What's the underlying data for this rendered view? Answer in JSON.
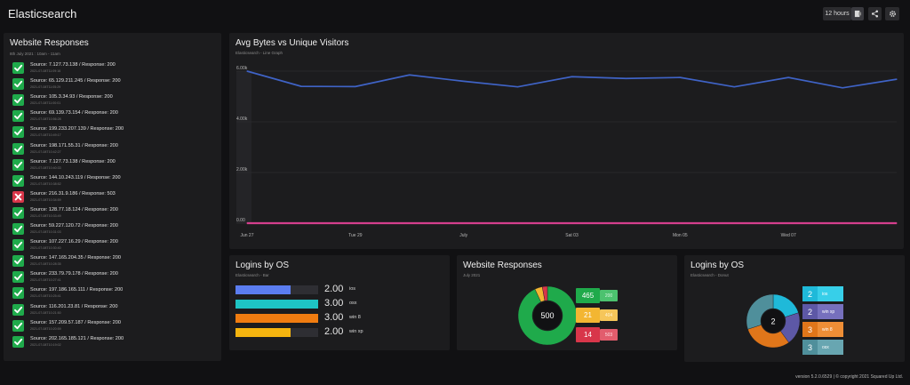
{
  "header": {
    "title": "Elasticsearch",
    "time_range": "12 hours"
  },
  "colors": {
    "background": "#111113",
    "panel": "#1c1c1e",
    "success": "#1faa4b",
    "error": "#d8364a",
    "line_blue": "#3f63c6",
    "line_pink": "#d43f8d"
  },
  "website_responses": {
    "title": "Website Responses",
    "subtitle": "8th July 2021 : 10am - 11am",
    "items": [
      {
        "text": "Source: 7.127.73.138 / Response: 200",
        "time": "2021-07-08T11:09:16",
        "status": "ok"
      },
      {
        "text": "Source: 65.129.211.245 / Response: 200",
        "time": "2021-07-08T11:05:29",
        "status": "ok"
      },
      {
        "text": "Source: 105.3.34.93 / Response: 200",
        "time": "2021-07-08T11:00:01",
        "status": "ok"
      },
      {
        "text": "Source: 69.139.73.154 / Response: 200",
        "time": "2021-07-08T10:56:28",
        "status": "ok"
      },
      {
        "text": "Source: 199.233.207.139 / Response: 200",
        "time": "2021-07-08T10:49:17",
        "status": "ok"
      },
      {
        "text": "Source: 198.171.55.31 / Response: 200",
        "time": "2021-07-08T10:42:27",
        "status": "ok"
      },
      {
        "text": "Source: 7.127.73.138 / Response: 200",
        "time": "2021-07-08T10:40:33",
        "status": "ok"
      },
      {
        "text": "Source: 144.10.243.119 / Response: 200",
        "time": "2021-07-08T10:38:52",
        "status": "ok"
      },
      {
        "text": "Source: 216.31.9.186 / Response: 503",
        "time": "2021-07-08T10:34:59",
        "status": "error"
      },
      {
        "text": "Source: 128.77.18.124 / Response: 200",
        "time": "2021-07-08T10:33:49",
        "status": "ok"
      },
      {
        "text": "Source: 59.227.120.72 / Response: 200",
        "time": "2021-07-08T10:31:03",
        "status": "ok"
      },
      {
        "text": "Source: 107.227.16.29 / Response: 200",
        "time": "2021-07-08T10:30:40",
        "status": "ok"
      },
      {
        "text": "Source: 147.165.204.35 / Response: 200",
        "time": "2021-07-08T10:28:35",
        "status": "ok"
      },
      {
        "text": "Source: 233.79.79.178 / Response: 200",
        "time": "2021-07-08T10:27:41",
        "status": "ok"
      },
      {
        "text": "Source: 197.186.165.111 / Response: 200",
        "time": "2021-07-08T10:25:41",
        "status": "ok"
      },
      {
        "text": "Source: 116.201.23.81 / Response: 200",
        "time": "2021-07-08T10:21:50",
        "status": "ok"
      },
      {
        "text": "Source: 157.209.57.187 / Response: 200",
        "time": "2021-07-08T10:20:59",
        "status": "ok"
      },
      {
        "text": "Source: 202.165.185.121 / Response: 200",
        "time": "2021-07-08T10:19:02",
        "status": "ok"
      }
    ]
  },
  "avg_bytes": {
    "title": "Avg Bytes vs Unique Visitors",
    "subtitle": "Elasticsearch - Line Graph"
  },
  "logins_bar": {
    "title": "Logins by OS",
    "subtitle": "Elasticsearch - Bar",
    "rows": [
      {
        "value": "2.00",
        "label": "ios",
        "fraction": 0.667,
        "color": "#5b7df0"
      },
      {
        "value": "3.00",
        "label": "osx",
        "fraction": 1.0,
        "color": "#1ec4c4"
      },
      {
        "value": "3.00",
        "label": "win 8",
        "fraction": 1.0,
        "color": "#f07c10"
      },
      {
        "value": "2.00",
        "label": "win xp",
        "fraction": 0.667,
        "color": "#f5b40f"
      }
    ]
  },
  "website_responses_donut": {
    "title": "Website Responses",
    "subtitle": "July 2021",
    "center": "500",
    "tiles": [
      {
        "count": "465",
        "code": "200",
        "color": "#1faa4b",
        "sub_color": "#4cc26f",
        "code_color": "#d8f5e0"
      },
      {
        "count": "21",
        "code": "404",
        "color": "#f3b632",
        "sub_color": "#f6c65a",
        "code_color": "#fff3d4"
      },
      {
        "count": "14",
        "code": "503",
        "color": "#d8364a",
        "sub_color": "#e25d6d",
        "code_color": "#ffe1e5"
      }
    ]
  },
  "logins_donut": {
    "title": "Logins by OS",
    "subtitle": "Elasticsearch - Donut",
    "center": "2",
    "legend": [
      {
        "count": "2",
        "label": "ios",
        "color": "#1fb9d9",
        "light": "#37cfe9"
      },
      {
        "count": "2",
        "label": "win xp",
        "color": "#5d58a6",
        "light": "#7670bd"
      },
      {
        "count": "3",
        "label": "win 8",
        "color": "#e0761a",
        "light": "#ee8e36"
      },
      {
        "count": "3",
        "label": "osx",
        "color": "#4f8f9b",
        "light": "#68a6b1"
      }
    ]
  },
  "chart_data": [
    {
      "type": "line",
      "title": "Avg Bytes vs Unique Visitors",
      "x": [
        "Jun 27",
        "Jun 28",
        "Jun 29",
        "Jun 30",
        "Jul 01",
        "Jul 02",
        "Jul 03",
        "Jul 04",
        "Jul 05",
        "Jul 06",
        "Jul 07",
        "Jul 08",
        "Jul 09"
      ],
      "x_tick_labels": [
        "Jun 27",
        "Tue 29",
        "July",
        "Sat 03",
        "Mon 05",
        "Wed 07"
      ],
      "y_tick_labels": [
        "6.00k",
        "4.00k",
        "2.00k",
        "0.00"
      ],
      "ylim": [
        0,
        6000
      ],
      "grid": true,
      "series": [
        {
          "values": [
            6000,
            5400,
            5390,
            5850,
            5600,
            5380,
            5780,
            5710,
            5750,
            5380,
            5750,
            5340,
            5680
          ]
        },
        {
          "values": [
            0,
            0,
            0,
            0,
            0,
            0,
            0,
            0,
            0,
            0,
            0,
            0,
            0
          ]
        }
      ]
    },
    {
      "type": "bar",
      "title": "Logins by OS",
      "categories": [
        "ios",
        "osx",
        "win 8",
        "win xp"
      ],
      "values": [
        2,
        3,
        3,
        2
      ]
    },
    {
      "type": "pie",
      "title": "Website Responses",
      "categories": [
        "200",
        "404",
        "503"
      ],
      "values": [
        465,
        21,
        14
      ]
    },
    {
      "type": "pie",
      "title": "Logins by OS",
      "categories": [
        "ios",
        "win xp",
        "win 8",
        "osx"
      ],
      "values": [
        2,
        2,
        3,
        3
      ]
    }
  ],
  "footer": {
    "text": "version 5.2.0.6529 | © copyright 2021 Squared Up Ltd."
  }
}
